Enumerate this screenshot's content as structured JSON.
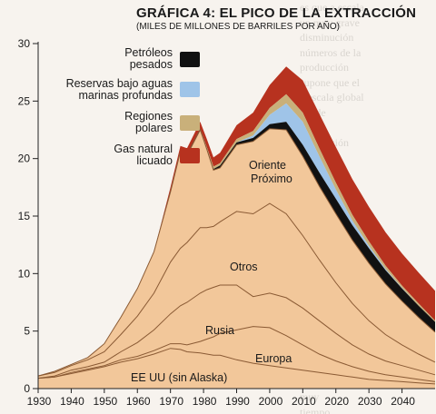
{
  "header": {
    "title": "GRÁFICA 4: EL PICO DE LA EXTRACCIÓN",
    "subtitle": "(MILES DE MILLONES DE BARRILES POR AÑO)"
  },
  "colors": {
    "base": "#f2c79a",
    "petroleos_pesados": "#111111",
    "reservas_aguas_profundas": "#9fc4e8",
    "regiones_polares": "#c9b07a",
    "gas_natural_licuado": "#b7321f",
    "lines": "#8a5a34"
  },
  "chart_data": {
    "type": "area",
    "title": "GRÁFICA 4: EL PICO DE LA EXTRACCIÓN",
    "subtitle": "(MILES DE MILLONES DE BARRILES POR AÑO)",
    "xlabel": "",
    "ylabel": "",
    "xlim": [
      1930,
      2050
    ],
    "ylim": [
      0,
      30
    ],
    "x_ticks": [
      1930,
      1940,
      1950,
      1960,
      1970,
      1980,
      1990,
      2000,
      2010,
      2020,
      2030,
      2040
    ],
    "y_ticks": [
      0,
      5,
      10,
      15,
      20,
      25,
      30
    ],
    "stacking": "cumulative",
    "x": [
      1930,
      1935,
      1940,
      1945,
      1950,
      1955,
      1960,
      1965,
      1970,
      1973,
      1975,
      1979,
      1981,
      1983,
      1985,
      1990,
      1995,
      2000,
      2005,
      2010,
      2015,
      2020,
      2025,
      2030,
      2035,
      2040,
      2045,
      2050
    ],
    "series": [
      {
        "name": "EE UU (sin Alaska)",
        "values": [
          0.9,
          1.0,
          1.3,
          1.6,
          1.9,
          2.3,
          2.6,
          3.0,
          3.5,
          3.4,
          3.2,
          3.1,
          3.0,
          2.9,
          2.9,
          2.5,
          2.2,
          2.0,
          1.8,
          1.6,
          1.4,
          1.2,
          1.0,
          0.8,
          0.7,
          0.6,
          0.5,
          0.4
        ]
      },
      {
        "name": "Europa",
        "values": [
          0.0,
          0.0,
          0.1,
          0.1,
          0.1,
          0.2,
          0.2,
          0.3,
          0.4,
          0.5,
          0.6,
          1.0,
          1.3,
          1.6,
          1.9,
          2.6,
          3.2,
          3.3,
          2.8,
          2.2,
          1.6,
          1.2,
          0.9,
          0.7,
          0.5,
          0.4,
          0.3,
          0.2
        ]
      },
      {
        "name": "Rusia",
        "values": [
          0.0,
          0.1,
          0.2,
          0.2,
          0.3,
          0.7,
          1.2,
          1.8,
          2.6,
          3.3,
          3.7,
          4.2,
          4.3,
          4.3,
          4.2,
          3.9,
          2.6,
          3.0,
          3.3,
          3.2,
          2.9,
          2.4,
          1.9,
          1.5,
          1.2,
          1.0,
          0.8,
          0.6
        ]
      },
      {
        "name": "Otros",
        "values": [
          0.2,
          0.3,
          0.4,
          0.6,
          0.9,
          1.5,
          2.3,
          3.2,
          4.5,
          5.0,
          5.2,
          5.7,
          5.4,
          5.3,
          5.5,
          6.4,
          7.2,
          7.8,
          7.3,
          6.3,
          5.3,
          4.4,
          3.6,
          2.9,
          2.3,
          1.8,
          1.4,
          1.1
        ]
      },
      {
        "name": "Oriente Próximo",
        "values": [
          0.0,
          0.1,
          0.1,
          0.2,
          0.7,
          1.5,
          2.4,
          3.6,
          6.1,
          8.4,
          7.6,
          8.5,
          6.8,
          4.9,
          4.7,
          5.8,
          6.3,
          6.5,
          7.3,
          6.9,
          6.4,
          6.0,
          5.5,
          5.0,
          4.4,
          3.8,
          3.2,
          2.6
        ]
      },
      {
        "name": "Petróleos pesados",
        "values": [
          0,
          0,
          0,
          0,
          0,
          0,
          0,
          0,
          0.1,
          0.1,
          0.1,
          0.1,
          0.1,
          0.1,
          0.2,
          0.2,
          0.3,
          0.4,
          0.7,
          1.0,
          1.2,
          1.3,
          1.3,
          1.3,
          1.2,
          1.1,
          1.0,
          0.9
        ]
      },
      {
        "name": "Reservas bajo aguas marinas profundas",
        "values": [
          0,
          0,
          0,
          0,
          0,
          0,
          0,
          0,
          0,
          0,
          0,
          0,
          0,
          0,
          0,
          0,
          0.2,
          0.8,
          1.6,
          2.0,
          1.4,
          0.8,
          0.4,
          0.2,
          0.1,
          0.05,
          0,
          0
        ]
      },
      {
        "name": "Regiones polares",
        "values": [
          0,
          0,
          0,
          0,
          0,
          0,
          0,
          0,
          0,
          0,
          0,
          0,
          0.1,
          0.2,
          0.2,
          0.3,
          0.4,
          0.6,
          0.8,
          0.8,
          0.7,
          0.6,
          0.5,
          0.4,
          0.3,
          0.2,
          0.2,
          0.1
        ]
      },
      {
        "name": "Gas natural licuado",
        "values": [
          0,
          0,
          0,
          0,
          0,
          0,
          0,
          0,
          0.3,
          0.4,
          0.5,
          0.6,
          0.7,
          0.8,
          0.9,
          1.2,
          1.6,
          2.0,
          2.4,
          2.8,
          3.0,
          3.1,
          3.1,
          3.0,
          2.9,
          2.8,
          2.7,
          2.6
        ]
      }
    ],
    "legend": [
      {
        "label": "Petróleos pesados",
        "color": "#111111"
      },
      {
        "label": "Reservas bajo aguas marinas profundas",
        "color": "#9fc4e8"
      },
      {
        "label": "Regiones polares",
        "color": "#c9b07a"
      },
      {
        "label": "Gas natural licuado",
        "color": "#b7321f"
      }
    ],
    "legend_placement": "top-left",
    "annotations": [
      "Oriente Próximo",
      "Otros",
      "Rusia",
      "Europa",
      "EE UU (sin Alaska)"
    ],
    "grid": false
  },
  "legend_labels": {
    "petroleos_l1": "Petróleos",
    "petroleos_l2": "pesados",
    "aguas_l1": "Reservas bajo aguas",
    "aguas_l2": "marinas profundas",
    "polares_l1": "Regiones",
    "polares_l2": "polares",
    "gas_l1": "Gas natural",
    "gas_l2": "licuado"
  },
  "area_labels": {
    "oriente_l1": "Oriente",
    "oriente_l2": "Próximo",
    "otros": "Otros",
    "rusia": "Rusia",
    "europa": "Europa",
    "eeuu": "EE UU (sin Alaska)"
  },
  "background_text": "es que a escala\nun muy grave\ndisminución\nnúmeros de la\nproducción\nsupone que el\na escala global\npuede\ndel\nproducción\nsumada\nel\ncomo\ngran\nrepresenta\nde la\nproducción\nde un\nfinal\nde este\ndescenso\nde las\nreservas\nque\nya\ndesde\nmuy\ntiempo\n..."
}
